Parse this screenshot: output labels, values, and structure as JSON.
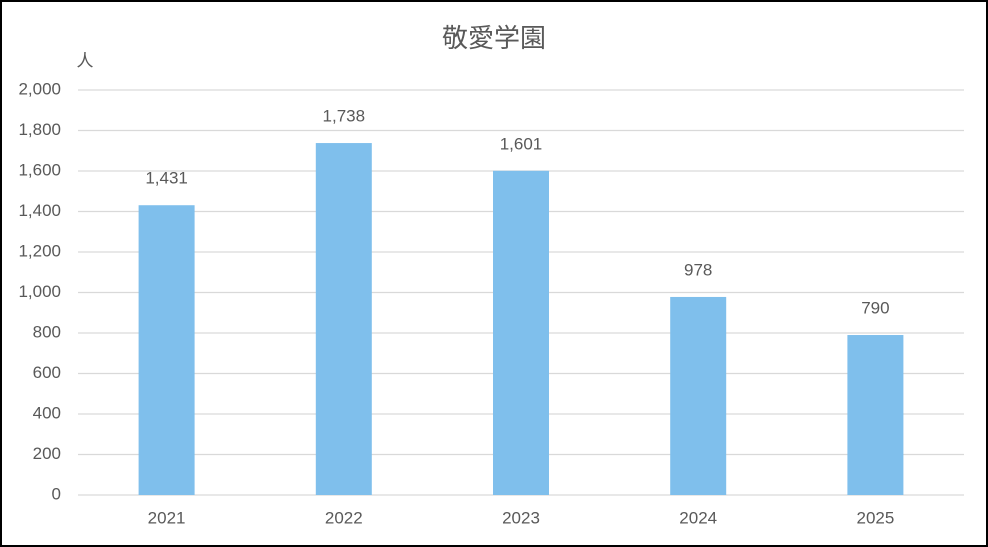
{
  "chart_data": {
    "type": "bar",
    "title": "敬愛学園",
    "y_label": "人",
    "categories": [
      "2021",
      "2022",
      "2023",
      "2024",
      "2025"
    ],
    "values": [
      1431,
      1738,
      1601,
      978,
      790
    ],
    "value_labels": [
      "1,431",
      "1,738",
      "1,601",
      "978",
      "790"
    ],
    "color": "#7fbfec",
    "ylim": [
      0,
      2000
    ],
    "yticks": [
      0,
      200,
      400,
      600,
      800,
      {
        "value": 1000,
        "label": "1,000"
      },
      {
        "value": 1200,
        "label": "1,200"
      },
      {
        "value": 1400,
        "label": "1,400"
      },
      {
        "value": 1600,
        "label": "1,600"
      },
      {
        "value": 1800,
        "label": "1,800"
      },
      {
        "value": 2000,
        "label": "2,000"
      }
    ],
    "grid": true
  }
}
